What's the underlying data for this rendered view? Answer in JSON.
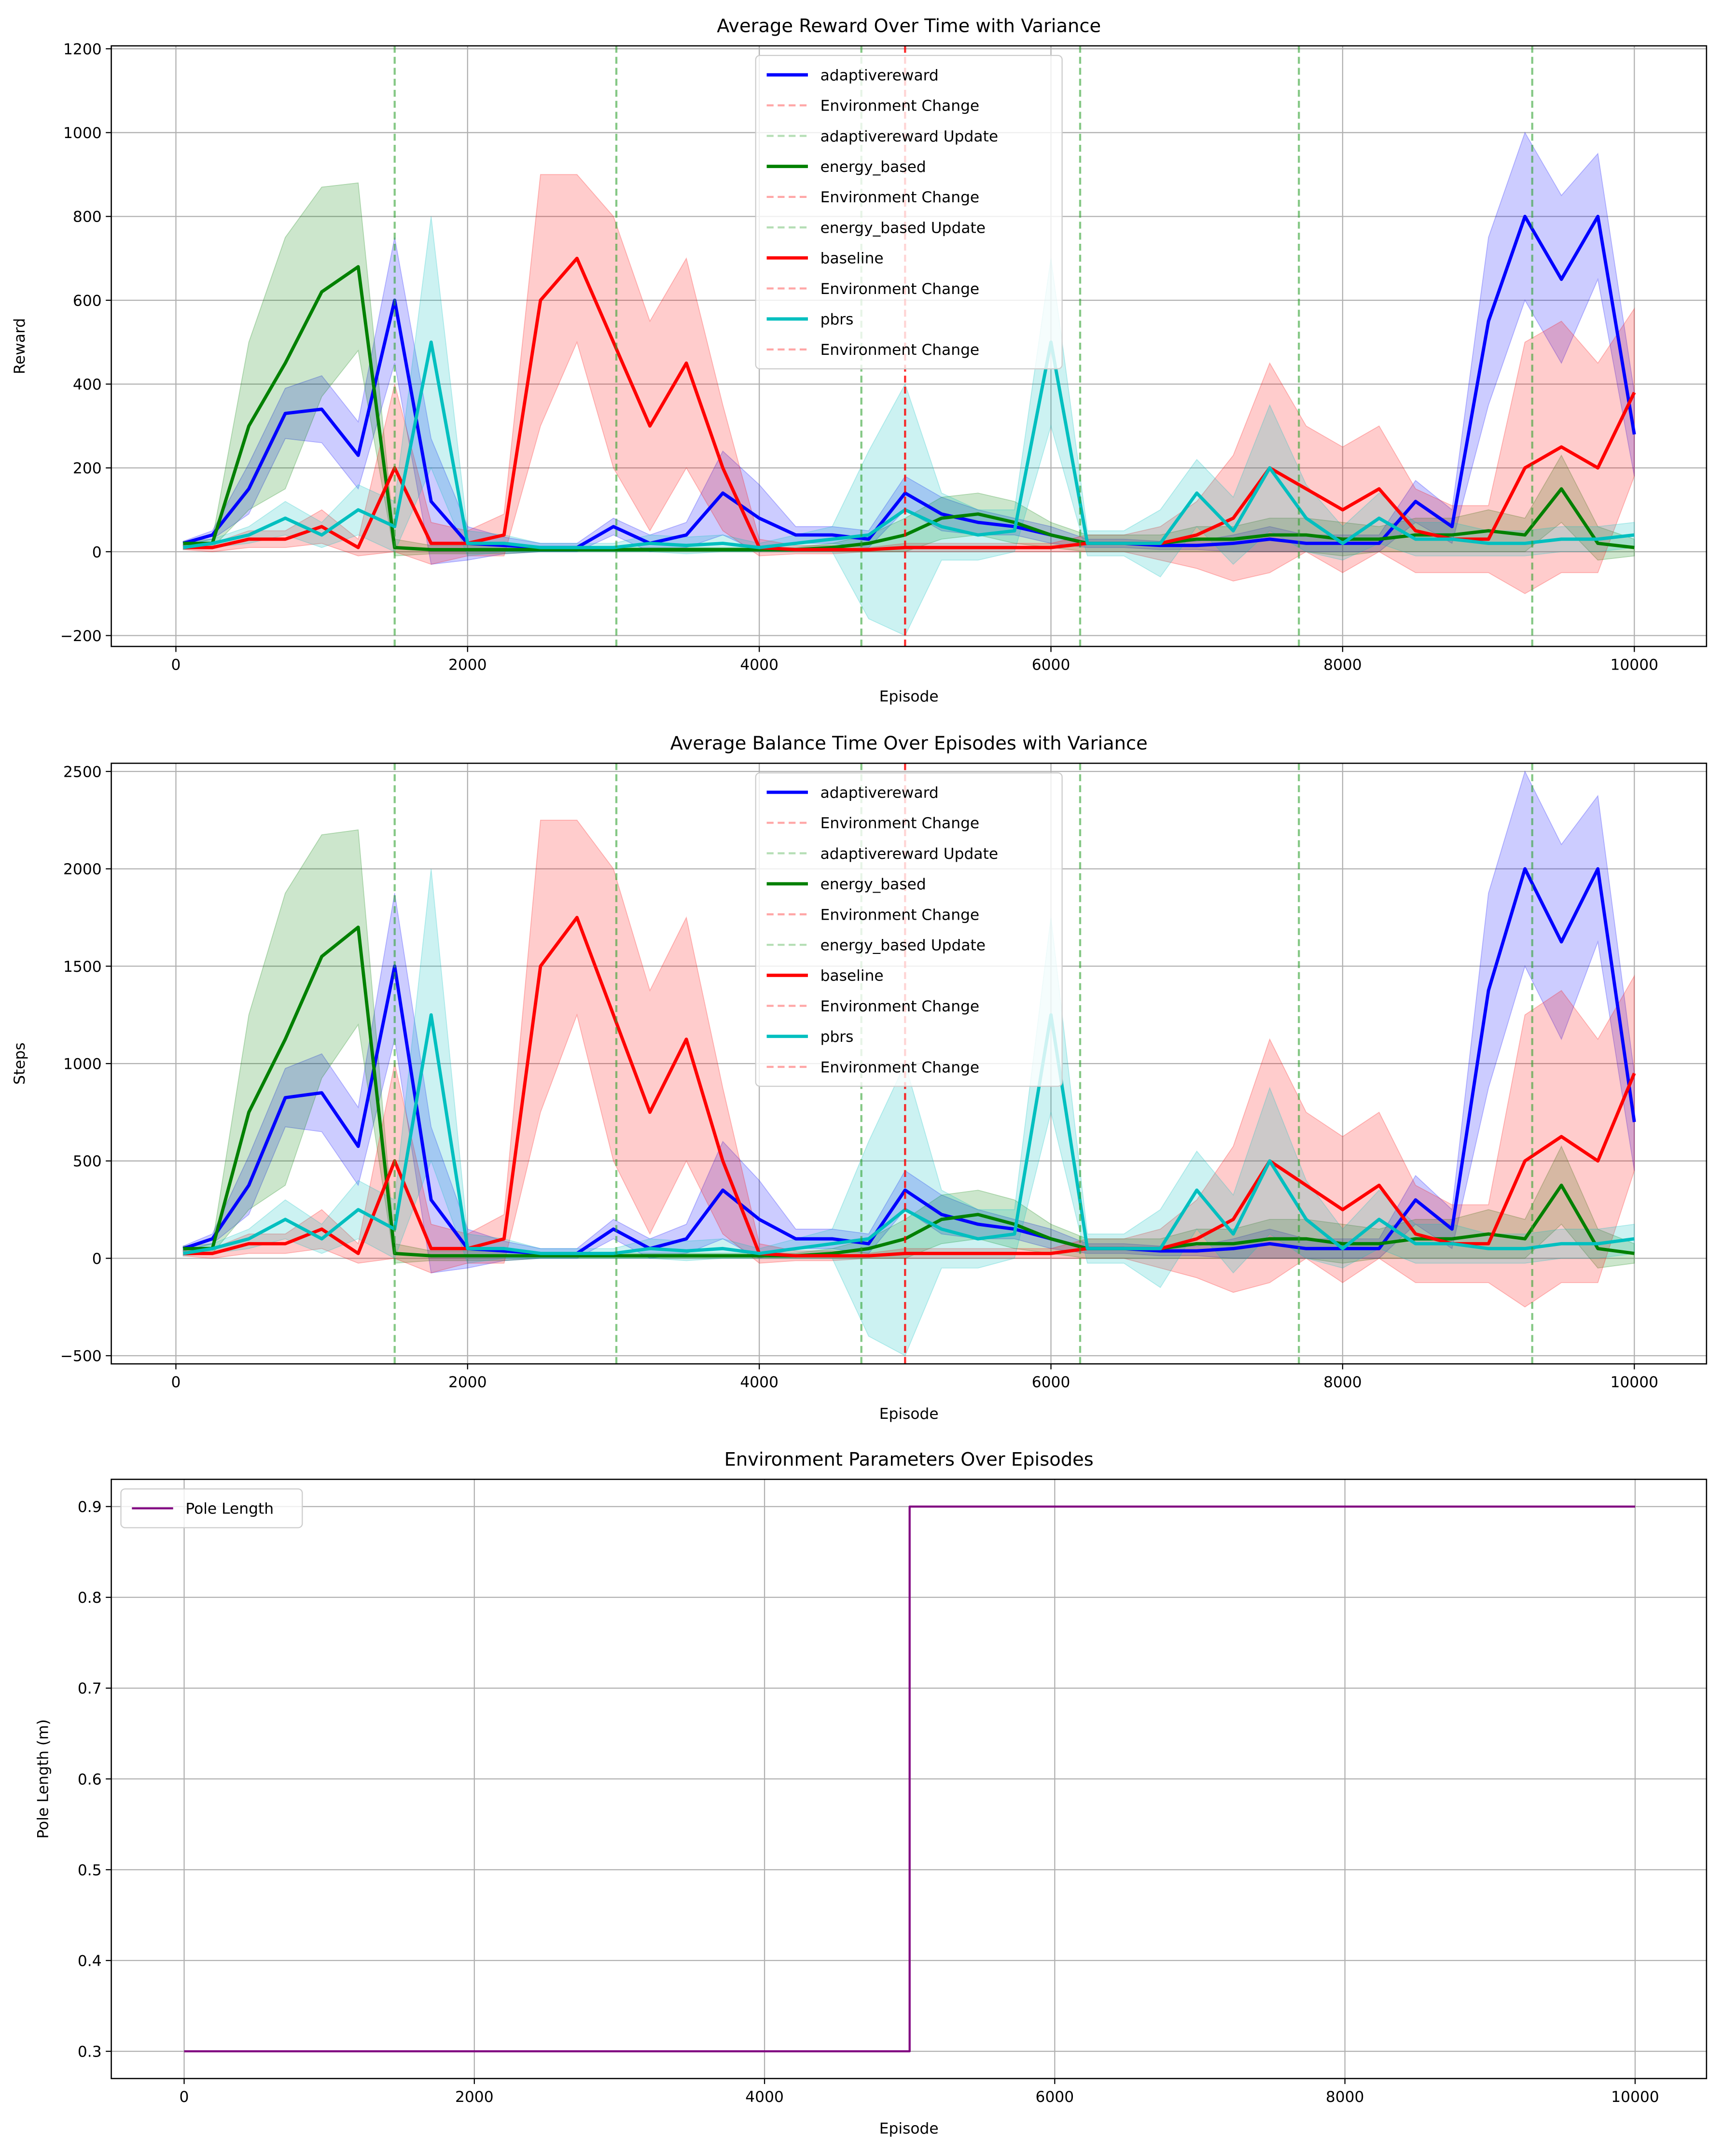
{
  "chart_data": [
    {
      "type": "line",
      "title": "Average Reward Over Time with Variance",
      "xlabel": "Episode",
      "ylabel": "Reward",
      "x": [
        50,
        250,
        500,
        750,
        1000,
        1250,
        1500,
        1750,
        2000,
        2250,
        2500,
        2750,
        3000,
        3250,
        3500,
        3750,
        4000,
        4250,
        4500,
        4750,
        5000,
        5250,
        5500,
        5750,
        6000,
        6250,
        6500,
        6750,
        7000,
        7250,
        7500,
        7750,
        8000,
        8250,
        8500,
        8750,
        9000,
        9250,
        9500,
        9750,
        10000
      ],
      "xlim": [
        -443,
        10495
      ],
      "ylim": [
        -226,
        1207
      ],
      "xticks": [
        0,
        2000,
        4000,
        6000,
        8000,
        10000
      ],
      "yticks": [
        {
          "value": -200,
          "label": "−200"
        },
        0,
        200,
        400,
        600,
        800,
        1000,
        1200
      ],
      "grid": true,
      "legend": "upper center",
      "series": [
        {
          "name": "adaptivereward",
          "color": "#0000ff",
          "values": [
            20,
            40,
            150,
            330,
            340,
            230,
            600,
            120,
            20,
            15,
            10,
            10,
            60,
            20,
            40,
            140,
            80,
            40,
            40,
            30,
            140,
            90,
            70,
            60,
            40,
            20,
            20,
            15,
            15,
            20,
            30,
            20,
            20,
            20,
            120,
            60,
            550,
            800,
            650,
            800,
            280
          ],
          "std": [
            5,
            10,
            60,
            60,
            80,
            80,
            150,
            150,
            40,
            20,
            10,
            10,
            20,
            20,
            30,
            100,
            80,
            20,
            20,
            20,
            40,
            40,
            30,
            20,
            20,
            10,
            10,
            10,
            10,
            20,
            30,
            20,
            20,
            20,
            50,
            40,
            200,
            200,
            200,
            150,
            100
          ],
          "env_change": {
            "name": "Environment Change",
            "x": 5000,
            "color": "#ff0000"
          },
          "update": {
            "name": "adaptivereward Update",
            "x": [
              1500,
              3020,
              4700,
              6200,
              7700,
              9300
            ],
            "color": "#2ca02c"
          }
        },
        {
          "name": "energy_based",
          "color": "#008000",
          "values": [
            20,
            20,
            300,
            450,
            620,
            680,
            10,
            5,
            5,
            5,
            5,
            5,
            5,
            5,
            5,
            5,
            5,
            5,
            10,
            20,
            40,
            80,
            90,
            70,
            40,
            20,
            20,
            20,
            30,
            30,
            40,
            40,
            30,
            30,
            40,
            40,
            50,
            40,
            150,
            20,
            10
          ],
          "std": [
            5,
            10,
            200,
            300,
            250,
            200,
            20,
            10,
            10,
            10,
            5,
            5,
            5,
            5,
            5,
            5,
            5,
            5,
            10,
            20,
            40,
            50,
            50,
            50,
            30,
            20,
            20,
            20,
            30,
            30,
            40,
            40,
            40,
            30,
            40,
            40,
            50,
            40,
            80,
            40,
            20
          ],
          "env_change": {
            "name": "Environment Change",
            "x": 5000,
            "color": "#ff0000"
          },
          "update": {
            "name": "energy_based Update",
            "x": [
              1500,
              3020,
              4700,
              6200,
              7700,
              9300
            ],
            "color": "#2ca02c"
          }
        },
        {
          "name": "baseline",
          "color": "#ff0000",
          "values": [
            10,
            10,
            30,
            30,
            60,
            10,
            200,
            20,
            20,
            40,
            600,
            700,
            500,
            300,
            450,
            200,
            10,
            5,
            5,
            5,
            10,
            10,
            10,
            10,
            10,
            20,
            20,
            20,
            40,
            80,
            200,
            150,
            100,
            150,
            50,
            30,
            30,
            200,
            250,
            200,
            380
          ],
          "std": [
            5,
            10,
            20,
            20,
            40,
            20,
            200,
            50,
            30,
            50,
            300,
            200,
            300,
            250,
            250,
            150,
            20,
            10,
            10,
            5,
            10,
            10,
            10,
            10,
            10,
            20,
            20,
            40,
            80,
            150,
            250,
            150,
            150,
            150,
            100,
            80,
            80,
            300,
            300,
            250,
            200
          ],
          "env_change": {
            "name": "Environment Change",
            "x": 5000,
            "color": "#ff0000"
          }
        },
        {
          "name": "pbrs",
          "color": "#00bfbf",
          "values": [
            10,
            20,
            40,
            80,
            40,
            100,
            60,
            500,
            20,
            20,
            10,
            10,
            10,
            20,
            15,
            20,
            10,
            20,
            30,
            40,
            100,
            60,
            40,
            50,
            500,
            20,
            20,
            20,
            140,
            50,
            200,
            80,
            20,
            80,
            30,
            30,
            20,
            20,
            30,
            30,
            40
          ],
          "std": [
            5,
            10,
            20,
            40,
            30,
            60,
            60,
            300,
            30,
            20,
            10,
            10,
            10,
            20,
            20,
            20,
            10,
            20,
            30,
            200,
            300,
            80,
            60,
            50,
            200,
            30,
            30,
            80,
            80,
            80,
            150,
            80,
            40,
            60,
            40,
            40,
            30,
            30,
            30,
            30,
            30
          ],
          "env_change": {
            "name": "Environment Change",
            "x": 5000,
            "color": "#ff0000"
          }
        }
      ]
    },
    {
      "type": "line",
      "title": "Average Balance Time Over Episodes with Variance",
      "xlabel": "Episode",
      "ylabel": "Steps",
      "x": [
        50,
        250,
        500,
        750,
        1000,
        1250,
        1500,
        1750,
        2000,
        2250,
        2500,
        2750,
        3000,
        3250,
        3500,
        3750,
        4000,
        4250,
        4500,
        4750,
        5000,
        5250,
        5500,
        5750,
        6000,
        6250,
        6500,
        6750,
        7000,
        7250,
        7500,
        7750,
        8000,
        8250,
        8500,
        8750,
        9000,
        9250,
        9500,
        9750,
        10000
      ],
      "xlim": [
        -443,
        10495
      ],
      "ylim": [
        -542,
        2542
      ],
      "xticks": [
        0,
        2000,
        4000,
        6000,
        8000,
        10000
      ],
      "yticks": [
        {
          "value": -500,
          "label": "−500"
        },
        0,
        500,
        1000,
        1500,
        2000,
        2500
      ],
      "grid": true,
      "legend": "upper center",
      "series": [
        {
          "name": "adaptivereward",
          "color": "#0000ff",
          "values": [
            50,
            100,
            375,
            825,
            850,
            575,
            1500,
            300,
            50,
            38,
            25,
            25,
            150,
            50,
            100,
            350,
            200,
            100,
            100,
            75,
            350,
            225,
            175,
            150,
            100,
            50,
            50,
            38,
            38,
            50,
            75,
            50,
            50,
            50,
            300,
            150,
            1375,
            2000,
            1625,
            2000,
            700
          ],
          "std": [
            13,
            25,
            150,
            150,
            200,
            200,
            375,
            375,
            100,
            50,
            25,
            25,
            50,
            50,
            75,
            250,
            200,
            50,
            50,
            50,
            100,
            100,
            75,
            50,
            50,
            25,
            25,
            25,
            25,
            50,
            75,
            50,
            50,
            50,
            125,
            100,
            500,
            500,
            500,
            375,
            250
          ],
          "env_change": {
            "name": "Environment Change",
            "x": 5000,
            "color": "#ff0000"
          },
          "update": {
            "name": "adaptivereward Update",
            "x": [
              1500,
              3020,
              4700,
              6200,
              7700,
              9300
            ],
            "color": "#2ca02c"
          }
        },
        {
          "name": "energy_based",
          "color": "#008000",
          "values": [
            50,
            50,
            750,
            1125,
            1550,
            1700,
            25,
            13,
            13,
            13,
            13,
            13,
            13,
            13,
            13,
            13,
            13,
            13,
            25,
            50,
            100,
            200,
            225,
            175,
            100,
            50,
            50,
            50,
            75,
            75,
            100,
            100,
            75,
            75,
            100,
            100,
            125,
            100,
            375,
            50,
            25
          ],
          "std": [
            13,
            25,
            500,
            750,
            625,
            500,
            50,
            25,
            25,
            25,
            13,
            13,
            13,
            13,
            13,
            13,
            13,
            13,
            25,
            50,
            100,
            125,
            125,
            125,
            75,
            50,
            50,
            50,
            75,
            75,
            100,
            100,
            100,
            75,
            100,
            100,
            125,
            100,
            200,
            100,
            50
          ],
          "env_change": {
            "name": "Environment Change",
            "x": 5000,
            "color": "#ff0000"
          },
          "update": {
            "name": "energy_based Update",
            "x": [
              1500,
              3020,
              4700,
              6200,
              7700,
              9300
            ],
            "color": "#2ca02c"
          }
        },
        {
          "name": "baseline",
          "color": "#ff0000",
          "values": [
            25,
            25,
            75,
            75,
            150,
            25,
            500,
            50,
            50,
            100,
            1500,
            1750,
            1250,
            750,
            1125,
            500,
            25,
            13,
            13,
            13,
            25,
            25,
            25,
            25,
            25,
            50,
            50,
            50,
            100,
            200,
            500,
            375,
            250,
            375,
            125,
            75,
            75,
            500,
            625,
            500,
            950
          ],
          "std": [
            13,
            25,
            50,
            50,
            100,
            50,
            500,
            125,
            75,
            125,
            750,
            500,
            750,
            625,
            625,
            375,
            50,
            25,
            25,
            13,
            25,
            25,
            25,
            25,
            25,
            50,
            50,
            100,
            200,
            375,
            625,
            375,
            375,
            375,
            250,
            200,
            200,
            750,
            750,
            625,
            500
          ],
          "env_change": {
            "name": "Environment Change",
            "x": 5000,
            "color": "#ff0000"
          }
        },
        {
          "name": "pbrs",
          "color": "#00bfbf",
          "values": [
            25,
            50,
            100,
            200,
            100,
            250,
            150,
            1250,
            50,
            50,
            25,
            25,
            25,
            50,
            38,
            50,
            25,
            50,
            75,
            100,
            250,
            150,
            100,
            125,
            1250,
            50,
            50,
            50,
            350,
            125,
            500,
            200,
            50,
            200,
            75,
            75,
            50,
            50,
            75,
            75,
            100
          ],
          "std": [
            13,
            25,
            50,
            100,
            75,
            150,
            150,
            750,
            75,
            50,
            25,
            25,
            25,
            50,
            50,
            50,
            25,
            50,
            75,
            500,
            750,
            200,
            150,
            125,
            500,
            75,
            75,
            200,
            200,
            200,
            375,
            200,
            100,
            150,
            100,
            100,
            75,
            75,
            75,
            75,
            75
          ],
          "env_change": {
            "name": "Environment Change",
            "x": 5000,
            "color": "#ff0000"
          }
        }
      ]
    },
    {
      "type": "line",
      "title": "Environment Parameters Over Episodes",
      "xlabel": "Episode",
      "ylabel": "Pole Length (m)",
      "x": [
        0,
        5000,
        10000
      ],
      "drawstyle": "steps-post",
      "xlim": [
        -502,
        10492
      ],
      "ylim": [
        0.27,
        0.93
      ],
      "xticks": [
        0,
        2000,
        4000,
        6000,
        8000,
        10000
      ],
      "yticks": [
        0.3,
        0.4,
        0.5,
        0.6,
        0.7,
        0.8,
        0.9
      ],
      "grid": true,
      "legend": "upper left",
      "series": [
        {
          "name": "Pole Length",
          "color": "#800080",
          "values": [
            0.3,
            0.9,
            0.9
          ]
        }
      ]
    }
  ]
}
